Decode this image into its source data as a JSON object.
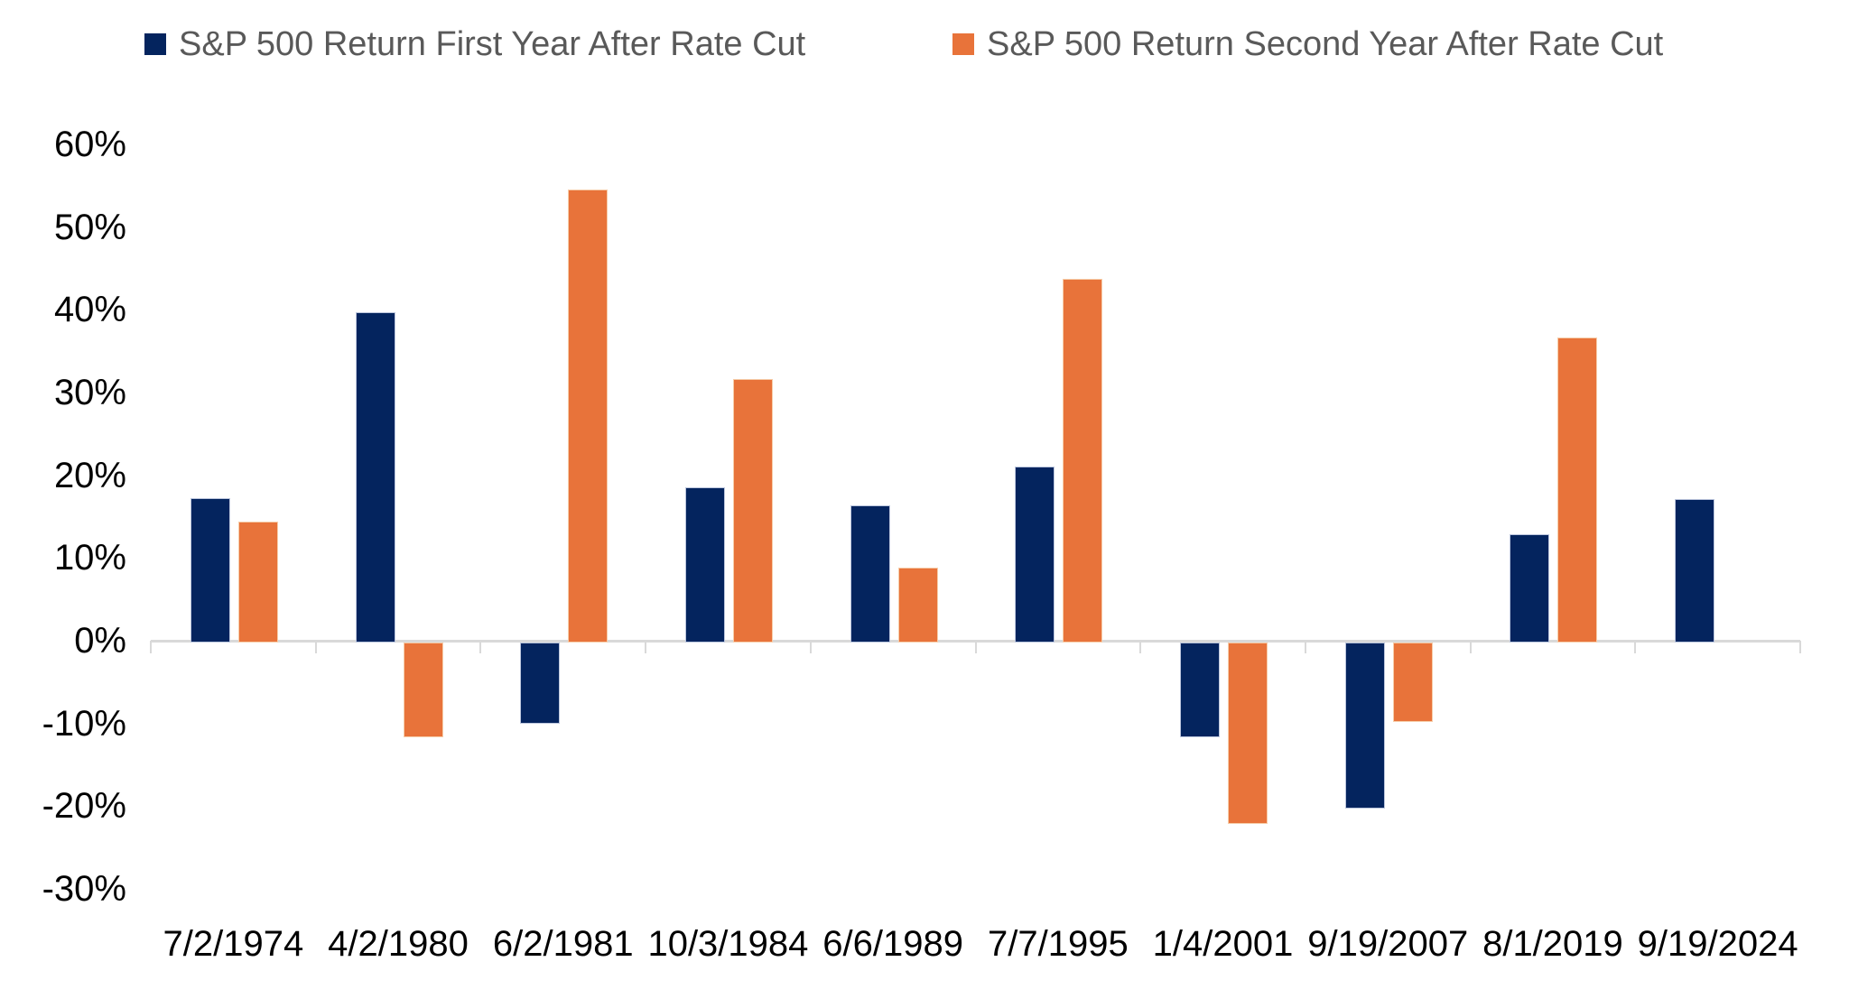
{
  "legend": [
    {
      "label": "S&P 500 Return First Year After Rate Cut",
      "color": "#04245e"
    },
    {
      "label": "S&P 500 Return Second Year After Rate Cut",
      "color": "#e8733a"
    }
  ],
  "chart_data": {
    "type": "bar",
    "title": "",
    "xlabel": "",
    "ylabel": "",
    "categories": [
      "7/2/1974",
      "4/2/1980",
      "6/2/1981",
      "10/3/1984",
      "6/6/1989",
      "7/7/1995",
      "1/4/2001",
      "9/19/2007",
      "8/1/2019",
      "9/19/2024"
    ],
    "series": [
      {
        "name": "S&P 500 Return First Year After Rate Cut",
        "color": "#04245e",
        "values": [
          17.2,
          39.7,
          -9.6,
          18.5,
          16.4,
          21.0,
          -11.2,
          -19.8,
          12.9,
          17.1
        ]
      },
      {
        "name": "S&P 500 Return Second Year After Rate Cut",
        "color": "#e8733a",
        "values": [
          14.4,
          -11.2,
          54.5,
          31.6,
          8.8,
          43.7,
          -21.7,
          -9.4,
          36.6,
          null
        ]
      }
    ],
    "ylim": [
      -30,
      60
    ],
    "yticks": [
      60,
      50,
      40,
      30,
      20,
      10,
      0,
      -10,
      -20,
      -30
    ],
    "ytick_suffix": "%",
    "grid": false,
    "legend_position": "top"
  },
  "colors": {
    "background": "#ffffff",
    "axis_line": "#d9d9d9",
    "tick_label_text": "#000000",
    "legend_text": "#595959"
  }
}
